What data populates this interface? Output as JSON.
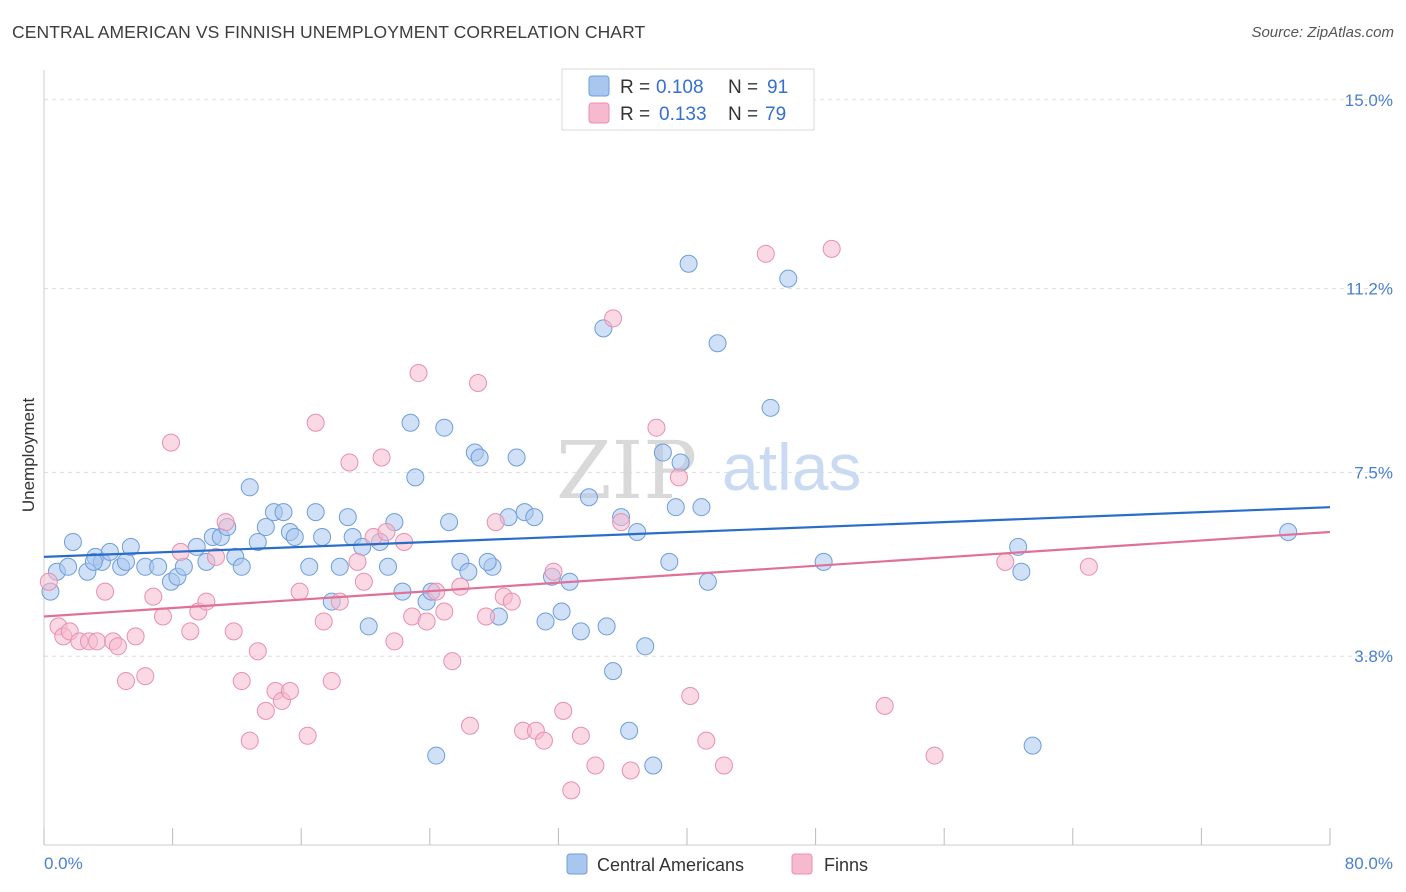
{
  "header": {
    "title": "CENTRAL AMERICAN VS FINNISH UNEMPLOYMENT CORRELATION CHART",
    "source": "Source: ZipAtlas.com"
  },
  "watermark": {
    "zip": "ZIP",
    "atlas": "atlas"
  },
  "colors": {
    "blue_fill": "#a9c7ee",
    "blue_stroke": "#6d9edb",
    "blue_line": "#2a6dc9",
    "pink_fill": "#f6b9cd",
    "pink_stroke": "#e98fae",
    "pink_line": "#e0709a",
    "tick_text": "#4a7fd0"
  },
  "legend": {
    "rows": [
      {
        "r_label": "R =",
        "r_value": "0.108",
        "n_label": "N =",
        "n_value": "91"
      },
      {
        "r_label": "R =",
        "r_value": "0.133",
        "n_label": "N =",
        "n_value": "79"
      }
    ]
  },
  "bottom_legend": [
    "Central Americans",
    "Finns"
  ],
  "chart_data": {
    "type": "scatter",
    "title": "CENTRAL AMERICAN VS FINNISH UNEMPLOYMENT CORRELATION CHART",
    "xlabel": "",
    "ylabel": "Unemployment",
    "xlim": [
      0,
      80
    ],
    "ylim": [
      0,
      15.6
    ],
    "x_tick_labels": [
      "0.0%",
      "80.0%"
    ],
    "y_ticks": [
      3.8,
      7.5,
      11.2,
      15.0
    ],
    "y_tick_labels": [
      "3.8%",
      "7.5%",
      "11.2%",
      "15.0%"
    ],
    "grid": true,
    "legend_position": "top-center",
    "series": [
      {
        "name": "Central Americans",
        "color": "#a9c7ee",
        "r": 0.108,
        "n": 91,
        "trend": {
          "x": [
            0,
            80
          ],
          "y": [
            5.8,
            6.8
          ]
        },
        "points": [
          [
            0.4,
            5.1
          ],
          [
            0.8,
            5.5
          ],
          [
            1.5,
            5.6
          ],
          [
            1.8,
            6.1
          ],
          [
            2.7,
            5.5
          ],
          [
            3.2,
            5.8
          ],
          [
            3.6,
            5.7
          ],
          [
            4.1,
            5.9
          ],
          [
            4.8,
            5.6
          ],
          [
            5.1,
            5.7
          ],
          [
            5.4,
            6.0
          ],
          [
            6.3,
            5.6
          ],
          [
            7.1,
            5.6
          ],
          [
            7.9,
            5.3
          ],
          [
            8.3,
            5.4
          ],
          [
            8.7,
            5.6
          ],
          [
            9.5,
            6.0
          ],
          [
            10.1,
            5.7
          ],
          [
            10.5,
            6.2
          ],
          [
            11.0,
            6.2
          ],
          [
            11.4,
            6.4
          ],
          [
            11.9,
            5.8
          ],
          [
            12.3,
            5.6
          ],
          [
            12.8,
            7.2
          ],
          [
            13.3,
            6.1
          ],
          [
            13.8,
            6.4
          ],
          [
            14.3,
            6.7
          ],
          [
            14.9,
            6.7
          ],
          [
            15.3,
            6.3
          ],
          [
            15.6,
            6.2
          ],
          [
            16.5,
            5.6
          ],
          [
            16.9,
            6.7
          ],
          [
            17.3,
            6.2
          ],
          [
            17.9,
            4.9
          ],
          [
            18.4,
            5.6
          ],
          [
            18.9,
            6.6
          ],
          [
            19.2,
            6.2
          ],
          [
            19.8,
            6.0
          ],
          [
            20.2,
            4.4
          ],
          [
            20.9,
            6.1
          ],
          [
            21.4,
            5.6
          ],
          [
            21.8,
            6.5
          ],
          [
            22.3,
            5.1
          ],
          [
            22.8,
            8.5
          ],
          [
            23.1,
            7.4
          ],
          [
            23.8,
            4.9
          ],
          [
            24.1,
            5.1
          ],
          [
            24.9,
            8.4
          ],
          [
            25.2,
            6.5
          ],
          [
            25.9,
            5.7
          ],
          [
            26.4,
            5.5
          ],
          [
            26.8,
            7.9
          ],
          [
            27.1,
            7.8
          ],
          [
            27.9,
            5.6
          ],
          [
            28.3,
            4.6
          ],
          [
            28.9,
            6.6
          ],
          [
            29.4,
            7.8
          ],
          [
            29.9,
            6.7
          ],
          [
            30.5,
            6.6
          ],
          [
            31.2,
            4.5
          ],
          [
            31.6,
            5.4
          ],
          [
            32.2,
            4.7
          ],
          [
            32.7,
            5.3
          ],
          [
            33.4,
            4.3
          ],
          [
            33.9,
            7.0
          ],
          [
            34.8,
            10.4
          ],
          [
            35.0,
            4.4
          ],
          [
            35.4,
            3.5
          ],
          [
            35.9,
            6.6
          ],
          [
            36.4,
            2.3
          ],
          [
            36.9,
            6.3
          ],
          [
            37.4,
            4.0
          ],
          [
            37.9,
            1.6
          ],
          [
            38.5,
            7.9
          ],
          [
            38.9,
            5.7
          ],
          [
            39.3,
            6.8
          ],
          [
            39.6,
            7.7
          ],
          [
            40.1,
            11.7
          ],
          [
            40.9,
            6.8
          ],
          [
            41.3,
            5.3
          ],
          [
            41.9,
            10.1
          ],
          [
            45.2,
            8.8
          ],
          [
            46.3,
            11.4
          ],
          [
            48.5,
            5.7
          ],
          [
            24.4,
            1.8
          ],
          [
            27.6,
            5.7
          ],
          [
            60.6,
            6.0
          ],
          [
            60.8,
            5.5
          ],
          [
            61.5,
            2.0
          ],
          [
            77.4,
            6.3
          ],
          [
            3.1,
            5.7
          ]
        ]
      },
      {
        "name": "Finns",
        "color": "#f6b9cd",
        "r": 0.133,
        "n": 79,
        "trend": {
          "x": [
            0,
            80
          ],
          "y": [
            4.6,
            6.3
          ]
        },
        "points": [
          [
            0.3,
            5.3
          ],
          [
            0.9,
            4.4
          ],
          [
            1.2,
            4.2
          ],
          [
            1.6,
            4.3
          ],
          [
            2.2,
            4.1
          ],
          [
            2.8,
            4.1
          ],
          [
            3.3,
            4.1
          ],
          [
            3.8,
            5.1
          ],
          [
            4.3,
            4.1
          ],
          [
            4.6,
            4.0
          ],
          [
            5.1,
            3.3
          ],
          [
            5.7,
            4.2
          ],
          [
            6.3,
            3.4
          ],
          [
            6.8,
            5.0
          ],
          [
            7.4,
            4.6
          ],
          [
            7.9,
            8.1
          ],
          [
            8.5,
            5.9
          ],
          [
            9.1,
            4.3
          ],
          [
            9.6,
            4.7
          ],
          [
            10.1,
            4.9
          ],
          [
            10.7,
            5.8
          ],
          [
            11.3,
            6.5
          ],
          [
            11.8,
            4.3
          ],
          [
            12.3,
            3.3
          ],
          [
            12.8,
            2.1
          ],
          [
            13.3,
            3.9
          ],
          [
            13.8,
            2.7
          ],
          [
            14.4,
            3.1
          ],
          [
            14.8,
            2.9
          ],
          [
            15.3,
            3.1
          ],
          [
            15.9,
            5.1
          ],
          [
            16.4,
            2.2
          ],
          [
            16.9,
            8.5
          ],
          [
            17.4,
            4.5
          ],
          [
            17.9,
            3.3
          ],
          [
            18.4,
            4.9
          ],
          [
            19.0,
            7.7
          ],
          [
            19.5,
            5.7
          ],
          [
            19.9,
            5.3
          ],
          [
            20.5,
            6.2
          ],
          [
            21.0,
            7.8
          ],
          [
            21.3,
            6.3
          ],
          [
            21.8,
            4.1
          ],
          [
            22.4,
            6.1
          ],
          [
            22.9,
            4.6
          ],
          [
            23.3,
            9.5
          ],
          [
            23.8,
            4.5
          ],
          [
            24.4,
            5.1
          ],
          [
            24.9,
            4.7
          ],
          [
            25.4,
            3.7
          ],
          [
            25.9,
            5.2
          ],
          [
            26.5,
            2.4
          ],
          [
            27.0,
            9.3
          ],
          [
            27.5,
            4.6
          ],
          [
            28.1,
            6.5
          ],
          [
            28.6,
            5.0
          ],
          [
            29.1,
            4.9
          ],
          [
            29.8,
            2.3
          ],
          [
            30.6,
            2.3
          ],
          [
            31.1,
            2.1
          ],
          [
            31.7,
            5.5
          ],
          [
            32.3,
            2.7
          ],
          [
            32.8,
            1.1
          ],
          [
            33.4,
            2.2
          ],
          [
            34.3,
            1.6
          ],
          [
            35.4,
            10.6
          ],
          [
            35.9,
            6.5
          ],
          [
            36.5,
            1.5
          ],
          [
            38.1,
            8.4
          ],
          [
            39.5,
            7.4
          ],
          [
            40.2,
            3.0
          ],
          [
            41.2,
            2.1
          ],
          [
            42.3,
            1.6
          ],
          [
            44.9,
            11.9
          ],
          [
            49.0,
            12.0
          ],
          [
            52.3,
            2.8
          ],
          [
            55.4,
            1.8
          ],
          [
            59.8,
            5.7
          ],
          [
            65.0,
            5.6
          ]
        ]
      }
    ]
  }
}
